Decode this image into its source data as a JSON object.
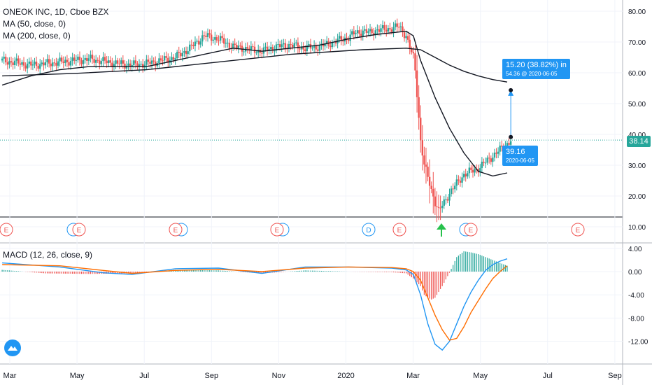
{
  "legend": {
    "title": "ONEOK INC, 1D, Cboe BZX",
    "ma50": "MA (50, close, 0)",
    "ma200": "MA (200, close, 0)",
    "macd": "MACD (12, 26, close, 9)"
  },
  "last_price": "38.14",
  "measure": {
    "change": "15.20 (38.82%) in",
    "target": "54.36 @ 2020-06-05",
    "start_price": "39.16",
    "start_date": "2020-06-05"
  },
  "colors": {
    "up": "#26a69a",
    "down": "#ef5350",
    "ma": "#131722",
    "macd_line": "#2196f3",
    "signal_line": "#ff6d00",
    "measure": "#2196f3"
  },
  "events": [
    {
      "label": "E",
      "kind": "earnings"
    },
    {
      "label": "E",
      "kind": "earnings"
    },
    {
      "label": "E",
      "kind": "earnings"
    },
    {
      "label": "E",
      "kind": "earnings"
    },
    {
      "label": "D",
      "kind": "dividend"
    },
    {
      "label": "E",
      "kind": "earnings"
    },
    {
      "label": "E",
      "kind": "earnings"
    },
    {
      "label": "E",
      "kind": "earnings"
    }
  ],
  "chart_data": {
    "type": "line",
    "price_axis": {
      "ylim": [
        8,
        82
      ],
      "ticks": [
        "80.00",
        "70.00",
        "60.00",
        "50.00",
        "40.00",
        "30.00",
        "20.00",
        "10.00"
      ]
    },
    "macd_axis": {
      "ylim": [
        -15,
        5
      ],
      "ticks": [
        "4.00",
        "0.00",
        "-4.00",
        "-8.00",
        "-12.00"
      ]
    },
    "x_ticks": [
      "Mar",
      "May",
      "Jul",
      "Sep",
      "Nov",
      "2020",
      "Mar",
      "May",
      "Jul",
      "Sep"
    ],
    "close": [
      [
        0,
        64
      ],
      [
        4,
        62.5
      ],
      [
        8,
        63.5
      ],
      [
        12,
        64.5
      ],
      [
        16,
        63
      ],
      [
        18,
        62.5
      ],
      [
        20,
        63
      ],
      [
        24,
        65
      ],
      [
        26,
        68
      ],
      [
        27,
        70
      ],
      [
        28,
        72
      ],
      [
        30,
        71
      ],
      [
        32,
        68.5
      ],
      [
        36,
        67
      ],
      [
        38,
        68.5
      ],
      [
        40,
        69
      ],
      [
        42,
        68
      ],
      [
        44,
        68.5
      ],
      [
        46,
        70
      ],
      [
        48,
        71.5
      ],
      [
        49,
        73
      ],
      [
        50,
        73.5
      ],
      [
        51,
        73
      ],
      [
        52,
        74
      ],
      [
        53,
        74
      ],
      [
        54,
        74.5
      ],
      [
        55,
        75
      ],
      [
        56,
        72
      ],
      [
        56.5,
        68
      ],
      [
        57,
        65
      ],
      [
        57.3,
        60
      ],
      [
        57.6,
        50
      ],
      [
        58,
        38
      ],
      [
        58.5,
        30
      ],
      [
        59,
        26
      ],
      [
        59.5,
        22
      ],
      [
        60,
        18
      ],
      [
        60.5,
        15
      ],
      [
        61,
        17
      ],
      [
        62,
        21
      ],
      [
        63,
        24
      ],
      [
        64,
        27
      ],
      [
        65,
        28
      ],
      [
        66,
        29
      ],
      [
        67,
        31
      ],
      [
        68,
        33
      ],
      [
        69,
        35
      ],
      [
        70,
        37
      ],
      [
        70.5,
        38.14
      ]
    ],
    "series": [
      {
        "name": "MA (50, close, 0)",
        "points": [
          [
            0,
            56
          ],
          [
            4,
            59
          ],
          [
            8,
            61
          ],
          [
            12,
            62
          ],
          [
            16,
            62
          ],
          [
            20,
            62
          ],
          [
            24,
            64
          ],
          [
            28,
            66
          ],
          [
            32,
            68
          ],
          [
            36,
            67
          ],
          [
            40,
            68
          ],
          [
            44,
            69
          ],
          [
            48,
            71
          ],
          [
            52,
            72.5
          ],
          [
            56,
            73.5
          ],
          [
            57,
            72
          ],
          [
            58,
            64
          ],
          [
            60,
            52
          ],
          [
            62,
            42
          ],
          [
            64,
            34
          ],
          [
            66,
            28
          ],
          [
            68,
            26.5
          ],
          [
            70,
            27.5
          ]
        ]
      },
      {
        "name": "MA (200, close, 0)",
        "points": [
          [
            0,
            59
          ],
          [
            10,
            59.8
          ],
          [
            20,
            61
          ],
          [
            30,
            63.5
          ],
          [
            40,
            66
          ],
          [
            50,
            67.5
          ],
          [
            56,
            68
          ],
          [
            58,
            67.5
          ],
          [
            60,
            65
          ],
          [
            62,
            62.5
          ],
          [
            64,
            60.5
          ],
          [
            66,
            59
          ],
          [
            68,
            57.8
          ],
          [
            70,
            57
          ]
        ]
      }
    ],
    "macd": {
      "macd_line": [
        [
          0,
          1.5
        ],
        [
          8,
          0.8
        ],
        [
          14,
          -0.2
        ],
        [
          18,
          -0.5
        ],
        [
          24,
          0.5
        ],
        [
          30,
          0.6
        ],
        [
          36,
          -0.3
        ],
        [
          42,
          0.8
        ],
        [
          48,
          0.8
        ],
        [
          54,
          0.6
        ],
        [
          56,
          0.3
        ],
        [
          57,
          -0.5
        ],
        [
          58,
          -4
        ],
        [
          59,
          -9
        ],
        [
          60,
          -12.5
        ],
        [
          61,
          -13.5
        ],
        [
          62,
          -12
        ],
        [
          63,
          -9
        ],
        [
          64,
          -6
        ],
        [
          65,
          -3.5
        ],
        [
          66,
          -1.5
        ],
        [
          67,
          0.2
        ],
        [
          68,
          1.2
        ],
        [
          69,
          1.8
        ],
        [
          70,
          2.2
        ]
      ],
      "signal_line": [
        [
          0,
          1.2
        ],
        [
          8,
          1.0
        ],
        [
          14,
          0.2
        ],
        [
          18,
          -0.3
        ],
        [
          24,
          0.2
        ],
        [
          30,
          0.4
        ],
        [
          36,
          0
        ],
        [
          42,
          0.6
        ],
        [
          48,
          0.8
        ],
        [
          54,
          0.7
        ],
        [
          56,
          0.5
        ],
        [
          57,
          0
        ],
        [
          58,
          -1.5
        ],
        [
          59,
          -4.5
        ],
        [
          60,
          -7.5
        ],
        [
          61,
          -10
        ],
        [
          62,
          -11.8
        ],
        [
          63,
          -11.5
        ],
        [
          64,
          -9.5
        ],
        [
          65,
          -7
        ],
        [
          66,
          -5
        ],
        [
          67,
          -3
        ],
        [
          68,
          -1.2
        ],
        [
          69,
          0
        ],
        [
          70,
          1.0
        ]
      ],
      "histogram": [
        [
          0,
          0.3
        ],
        [
          6,
          -0.3
        ],
        [
          12,
          -0.4
        ],
        [
          18,
          -0.3
        ],
        [
          24,
          0.3
        ],
        [
          30,
          0.2
        ],
        [
          36,
          -0.3
        ],
        [
          42,
          0.2
        ],
        [
          48,
          0
        ],
        [
          54,
          -0.1
        ],
        [
          56,
          -0.3
        ],
        [
          57,
          -1.2
        ],
        [
          58,
          -2.5
        ],
        [
          58.5,
          -4
        ],
        [
          59,
          -4.5
        ],
        [
          59.5,
          -4.8
        ],
        [
          60,
          -4.5
        ],
        [
          60.5,
          -3.5
        ],
        [
          61,
          -2.5
        ],
        [
          62,
          -0.2
        ],
        [
          63,
          2.5
        ],
        [
          64,
          3.5
        ],
        [
          65,
          3.3
        ],
        [
          66,
          3
        ],
        [
          67,
          2.5
        ],
        [
          68,
          2
        ],
        [
          69,
          1.5
        ],
        [
          70,
          1
        ]
      ]
    },
    "measure": {
      "from": [
        70.5,
        39.16
      ],
      "to": [
        70.5,
        54.36
      ]
    }
  }
}
